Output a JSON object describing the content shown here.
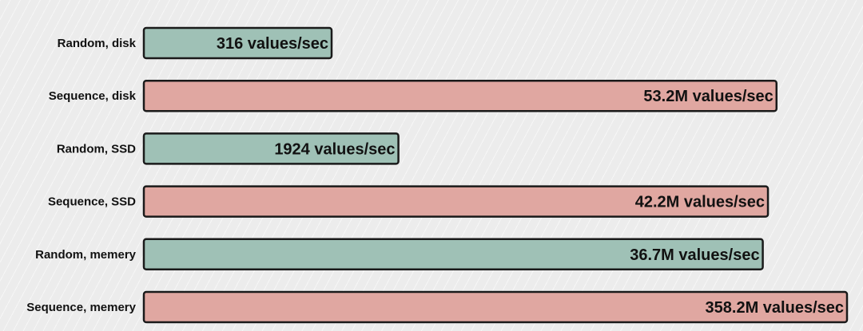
{
  "chart_data": {
    "type": "bar",
    "orientation": "horizontal",
    "scale": "log",
    "categories": [
      "Random, disk",
      "Sequence, disk",
      "Random, SSD",
      "Sequence, SSD",
      "Random, memery",
      "Sequence, memery"
    ],
    "values": [
      316,
      53200000,
      1924,
      42200000,
      36700000,
      358200000
    ],
    "data_labels": [
      "316 values/sec",
      "53.2M values/sec",
      "1924 values/sec",
      "42.2M values/sec",
      "36.7M values/sec",
      "358.2M values/sec"
    ],
    "title": "",
    "xlabel": "",
    "ylabel": "",
    "grid": false,
    "legend": "none",
    "colors": {
      "random": "#9fc1b6",
      "sequence": "#e0a7a1",
      "outline": "#1a1a1a",
      "background": "#ececec"
    }
  }
}
